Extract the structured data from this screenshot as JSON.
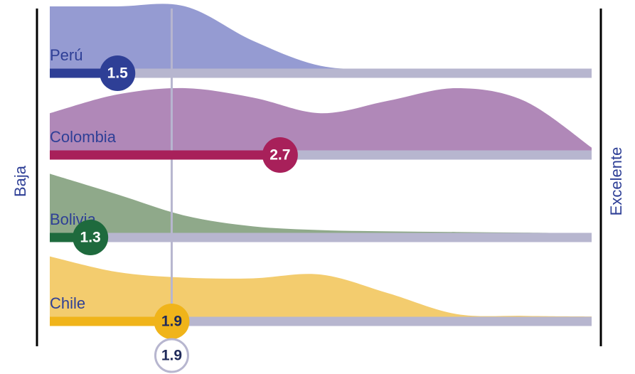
{
  "chart_data": {
    "type": "ridgeline",
    "xlim": [
      1,
      5
    ],
    "left_label": "Baja",
    "right_label": "Excelente",
    "density_x": [
      1,
      1.5,
      2,
      2.5,
      3,
      3.5,
      4,
      4.5,
      5
    ],
    "rows": [
      {
        "name": "Perú",
        "value": 1.5,
        "fill": "#959bd2",
        "color": "#2e3f96",
        "text_color": "#ffffff",
        "density": [
          1,
          1,
          1,
          0.45,
          0.05,
          0,
          0,
          0,
          0
        ]
      },
      {
        "name": "Colombia",
        "value": 2.7,
        "fill": "#b088b8",
        "color": "#a8205a",
        "text_color": "#ffffff",
        "density": [
          0.6,
          0.9,
          1,
          0.85,
          0.6,
          0.8,
          1,
          0.8,
          0.05
        ]
      },
      {
        "name": "Bolivia",
        "value": 1.3,
        "fill": "#8fa98a",
        "color": "#1e6a3d",
        "text_color": "#ffffff",
        "density": [
          0.95,
          0.62,
          0.28,
          0.11,
          0.05,
          0.03,
          0.02,
          0.01,
          0
        ]
      },
      {
        "name": "Chile",
        "value": 1.9,
        "fill": "#f3cc6e",
        "color": "#f0b41a",
        "text_color": "#1f2a5a",
        "density": [
          0.97,
          0.72,
          0.63,
          0.62,
          0.68,
          0.38,
          0.05,
          0.02,
          0.01
        ]
      }
    ],
    "overall": {
      "value": 1.9,
      "color": "#b7b6cf",
      "text_color": "#1f2a5a"
    },
    "track_color": "#b7b6cf"
  }
}
